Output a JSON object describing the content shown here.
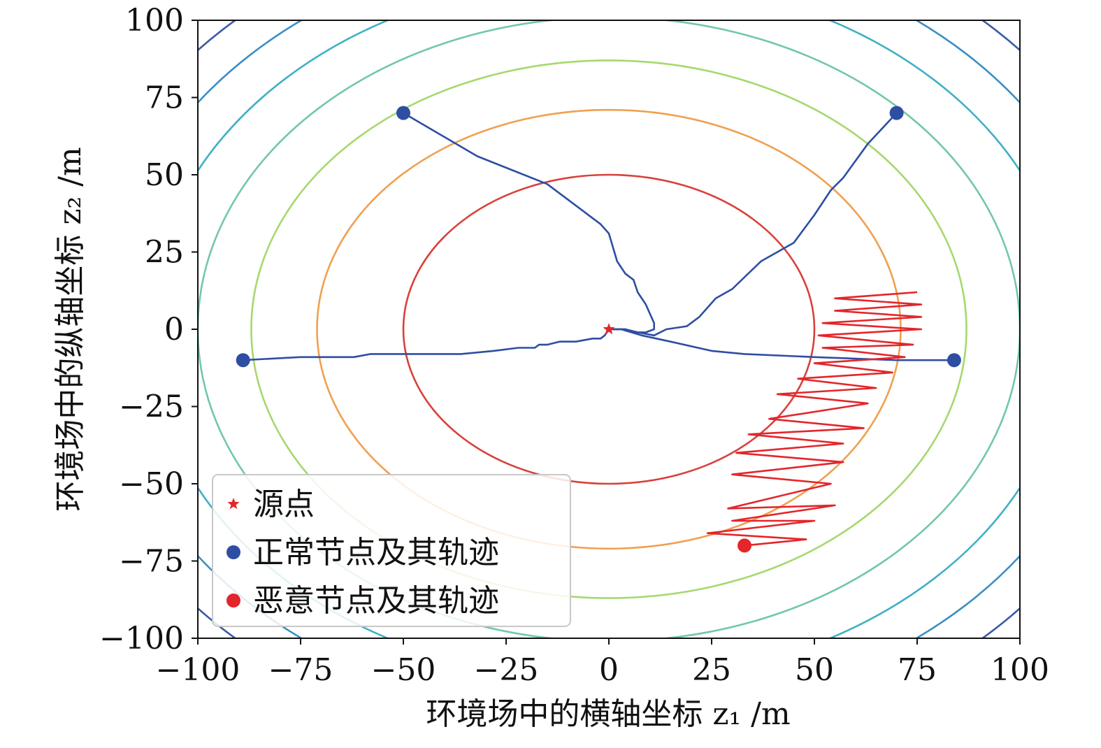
{
  "chart_data": {
    "type": "line",
    "xlabel": "环境场中的横轴坐标 z₁ /m",
    "ylabel": "环境场中的纵轴坐标 z₂ /m",
    "xlim": [
      -100,
      100
    ],
    "ylim": [
      -100,
      100
    ],
    "xticks": [
      -100,
      -75,
      -50,
      -25,
      0,
      25,
      50,
      75,
      100
    ],
    "yticks": [
      -100,
      -75,
      -50,
      -25,
      0,
      25,
      50,
      75,
      100
    ],
    "xtick_labels": [
      "−100",
      "−75",
      "−50",
      "−25",
      "0",
      "25",
      "50",
      "75",
      "100"
    ],
    "ytick_labels": [
      "−100",
      "−75",
      "−50",
      "−25",
      "0",
      "25",
      "50",
      "75",
      "100"
    ],
    "grid": false,
    "legend_position": "lower-left",
    "legend": [
      {
        "label": "源点",
        "marker": "star",
        "color": "#e3262b"
      },
      {
        "label": "正常节点及其轨迹",
        "marker": "circle",
        "color": "#2e4ea3"
      },
      {
        "label": "恶意节点及其轨迹",
        "marker": "circle",
        "color": "#e3262b"
      }
    ],
    "source": {
      "x": 0,
      "y": 0,
      "color": "#e3262b"
    },
    "contours": [
      {
        "a": 50,
        "b": 50,
        "color": "#d9413b"
      },
      {
        "a": 71,
        "b": 71,
        "color": "#f0a050"
      },
      {
        "a": 87,
        "b": 87,
        "color": "#a6d86e"
      },
      {
        "a": 100,
        "b": 101,
        "color": "#72c8a4"
      },
      {
        "a": 112,
        "b": 114,
        "color": "#3fb0c4"
      },
      {
        "a": 123,
        "b": 126,
        "color": "#3a8fc4"
      },
      {
        "a": 133,
        "b": 137,
        "color": "#3b5ba8"
      }
    ],
    "series": [
      {
        "role": "normal",
        "color": "#2e4ea3",
        "start": [
          -50,
          70
        ],
        "points": [
          [
            -50,
            70
          ],
          [
            -32,
            56
          ],
          [
            -15,
            47
          ],
          [
            -7,
            39
          ],
          [
            -2,
            34
          ],
          [
            0,
            31
          ],
          [
            2,
            22
          ],
          [
            4,
            18
          ],
          [
            6,
            16
          ],
          [
            7,
            12
          ],
          [
            9,
            8
          ],
          [
            11,
            2
          ],
          [
            11,
            0
          ],
          [
            9,
            -1
          ],
          [
            6,
            -1
          ],
          [
            4,
            0
          ],
          [
            2,
            0
          ],
          [
            0,
            0
          ]
        ]
      },
      {
        "role": "normal",
        "color": "#2e4ea3",
        "start": [
          70,
          70
        ],
        "points": [
          [
            70,
            70
          ],
          [
            63,
            60
          ],
          [
            57,
            49
          ],
          [
            54,
            45
          ],
          [
            50,
            37
          ],
          [
            45,
            28
          ],
          [
            37,
            22
          ],
          [
            30,
            13
          ],
          [
            26,
            10
          ],
          [
            22,
            4
          ],
          [
            19,
            1
          ],
          [
            14,
            0
          ],
          [
            11,
            -2
          ],
          [
            7,
            -1
          ],
          [
            4,
            0
          ],
          [
            1,
            0
          ],
          [
            0,
            0
          ]
        ]
      },
      {
        "role": "normal",
        "color": "#2e4ea3",
        "start": [
          -89,
          -10
        ],
        "points": [
          [
            -89,
            -10
          ],
          [
            -75,
            -9
          ],
          [
            -62,
            -9
          ],
          [
            -58,
            -8
          ],
          [
            -36,
            -8
          ],
          [
            -28,
            -7
          ],
          [
            -22,
            -6
          ],
          [
            -18,
            -6
          ],
          [
            -17,
            -5
          ],
          [
            -15,
            -5
          ],
          [
            -12,
            -4
          ],
          [
            -8,
            -4
          ],
          [
            -4,
            -3
          ],
          [
            -2,
            -3
          ],
          [
            -1,
            -2
          ],
          [
            0,
            0
          ]
        ]
      },
      {
        "role": "normal",
        "color": "#2e4ea3",
        "start": [
          84,
          -10
        ],
        "points": [
          [
            84,
            -10
          ],
          [
            70,
            -10
          ],
          [
            50,
            -9
          ],
          [
            33,
            -8
          ],
          [
            25,
            -7
          ],
          [
            15,
            -4
          ],
          [
            8,
            -2
          ],
          [
            3,
            0
          ],
          [
            0,
            0
          ]
        ]
      },
      {
        "role": "malicious",
        "color": "#e3262b",
        "start": [
          33,
          -70
        ],
        "points": [
          [
            33,
            -70
          ],
          [
            48,
            -68
          ],
          [
            24,
            -66
          ],
          [
            50,
            -62
          ],
          [
            30,
            -62
          ],
          [
            55,
            -57
          ],
          [
            29,
            -58
          ],
          [
            54,
            -50
          ],
          [
            30,
            -47
          ],
          [
            57,
            -43
          ],
          [
            31,
            -40
          ],
          [
            57,
            -37
          ],
          [
            34,
            -34
          ],
          [
            62,
            -32
          ],
          [
            39,
            -29
          ],
          [
            63,
            -24
          ],
          [
            41,
            -21
          ],
          [
            65,
            -19
          ],
          [
            46,
            -16
          ],
          [
            69,
            -14
          ],
          [
            50,
            -11
          ],
          [
            72,
            -9
          ],
          [
            52,
            -6
          ],
          [
            74,
            -5
          ],
          [
            51,
            -2
          ],
          [
            76,
            0
          ],
          [
            52,
            2
          ],
          [
            76,
            4
          ],
          [
            55,
            6
          ],
          [
            76,
            8
          ],
          [
            55,
            10
          ],
          [
            75,
            12
          ]
        ]
      }
    ]
  }
}
